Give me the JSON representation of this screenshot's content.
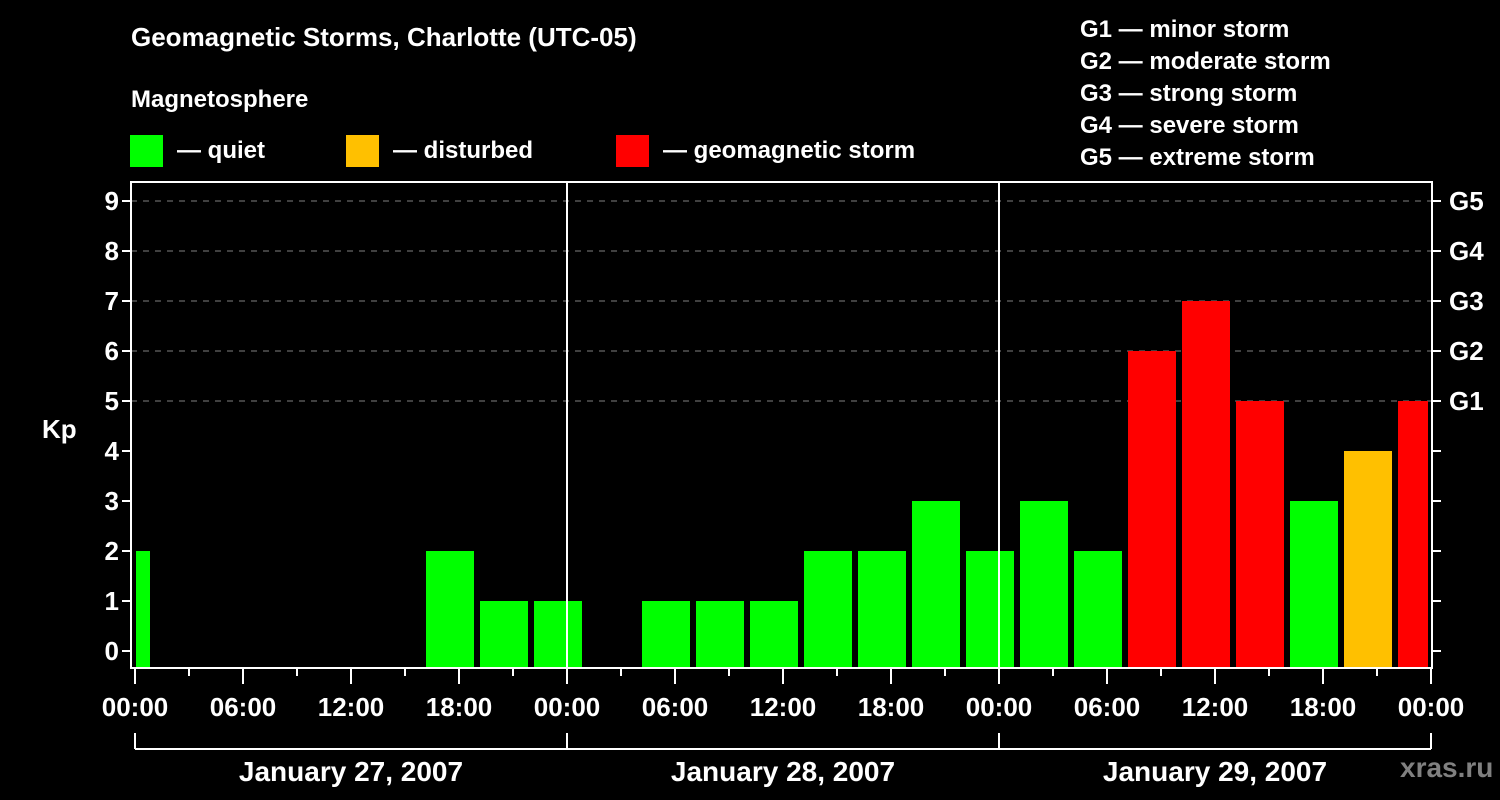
{
  "title": "Geomagnetic Storms, Charlotte (UTC-05)",
  "subtitle": "Magnetosphere",
  "colors": {
    "quiet": "#00FF00",
    "disturbed": "#FFC000",
    "storm": "#FF0000",
    "background": "#000000",
    "grid": "#808080"
  },
  "legend": [
    {
      "key": "quiet",
      "label": "— quiet",
      "color": "#00FF00"
    },
    {
      "key": "disturbed",
      "label": "— disturbed",
      "color": "#FFC000"
    },
    {
      "key": "storm",
      "label": "— geomagnetic storm",
      "color": "#FF0000"
    }
  ],
  "storm_scale": [
    "G1 — minor storm",
    "G2 — moderate storm",
    "G3 — strong storm",
    "G4 — severe storm",
    "G5 — extreme storm"
  ],
  "watermark": "xras.ru",
  "chart_data": {
    "type": "bar",
    "title": "Geomagnetic Storms, Charlotte (UTC-05)",
    "xlabel": "",
    "ylabel": "Kp",
    "ylim": [
      0,
      9
    ],
    "yticks": [
      "0",
      "1",
      "2",
      "3",
      "4",
      "5",
      "6",
      "7",
      "8",
      "9"
    ],
    "right_axis_ticks": [
      {
        "kp": 5,
        "label": "G1"
      },
      {
        "kp": 6,
        "label": "G2"
      },
      {
        "kp": 7,
        "label": "G3"
      },
      {
        "kp": 8,
        "label": "G4"
      },
      {
        "kp": 9,
        "label": "G5"
      }
    ],
    "xtick_labels": [
      "00:00",
      "06:00",
      "12:00",
      "18:00",
      "00:00",
      "06:00",
      "12:00",
      "18:00",
      "00:00",
      "06:00",
      "12:00",
      "18:00",
      "00:00"
    ],
    "days": [
      "January 27, 2007",
      "January 28, 2007",
      "January 29, 2007"
    ],
    "grid": true,
    "bars": [
      {
        "start_hour": -2,
        "end_hour": 1,
        "kp": 2,
        "level": "quiet"
      },
      {
        "start_hour": 16,
        "end_hour": 19,
        "kp": 2,
        "level": "quiet"
      },
      {
        "start_hour": 19,
        "end_hour": 22,
        "kp": 1,
        "level": "quiet"
      },
      {
        "start_hour": 22,
        "end_hour": 25,
        "kp": 1,
        "level": "quiet"
      },
      {
        "start_hour": 28,
        "end_hour": 31,
        "kp": 1,
        "level": "quiet"
      },
      {
        "start_hour": 31,
        "end_hour": 34,
        "kp": 1,
        "level": "quiet"
      },
      {
        "start_hour": 34,
        "end_hour": 37,
        "kp": 1,
        "level": "quiet"
      },
      {
        "start_hour": 37,
        "end_hour": 40,
        "kp": 2,
        "level": "quiet"
      },
      {
        "start_hour": 40,
        "end_hour": 43,
        "kp": 2,
        "level": "quiet"
      },
      {
        "start_hour": 43,
        "end_hour": 46,
        "kp": 3,
        "level": "quiet"
      },
      {
        "start_hour": 46,
        "end_hour": 49,
        "kp": 2,
        "level": "quiet"
      },
      {
        "start_hour": 49,
        "end_hour": 52,
        "kp": 3,
        "level": "quiet"
      },
      {
        "start_hour": 52,
        "end_hour": 55,
        "kp": 2,
        "level": "quiet"
      },
      {
        "start_hour": 55,
        "end_hour": 58,
        "kp": 6,
        "level": "storm"
      },
      {
        "start_hour": 58,
        "end_hour": 61,
        "kp": 7,
        "level": "storm"
      },
      {
        "start_hour": 61,
        "end_hour": 64,
        "kp": 5,
        "level": "storm"
      },
      {
        "start_hour": 64,
        "end_hour": 67,
        "kp": 3,
        "level": "quiet"
      },
      {
        "start_hour": 67,
        "end_hour": 70,
        "kp": 4,
        "level": "disturbed"
      },
      {
        "start_hour": 70,
        "end_hour": 73,
        "kp": 5,
        "level": "storm"
      }
    ]
  }
}
